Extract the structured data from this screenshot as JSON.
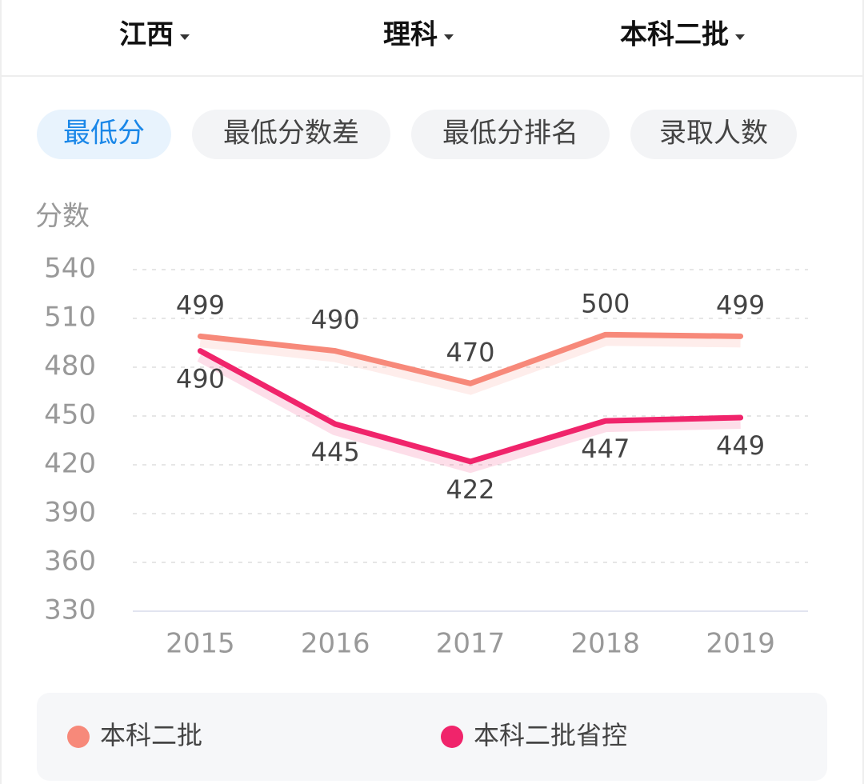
{
  "filters": [
    "江西",
    "理科",
    "本科二批"
  ],
  "tabs": [
    "最低分",
    "最低分数差",
    "最低分排名",
    "录取人数"
  ],
  "chart_data": {
    "type": "line",
    "y_label": "分数",
    "categories": [
      "2015",
      "2016",
      "2017",
      "2018",
      "2019"
    ],
    "series": [
      {
        "name": "本科二批",
        "color": "#f7897a",
        "values": [
          499,
          490,
          470,
          500,
          499
        ]
      },
      {
        "name": "本科二批省控",
        "color": "#f0246b",
        "values": [
          490,
          445,
          422,
          447,
          449
        ]
      }
    ],
    "ylim": [
      330,
      540
    ],
    "yticks": [
      330,
      360,
      390,
      420,
      450,
      480,
      510,
      540
    ],
    "grid": true
  }
}
